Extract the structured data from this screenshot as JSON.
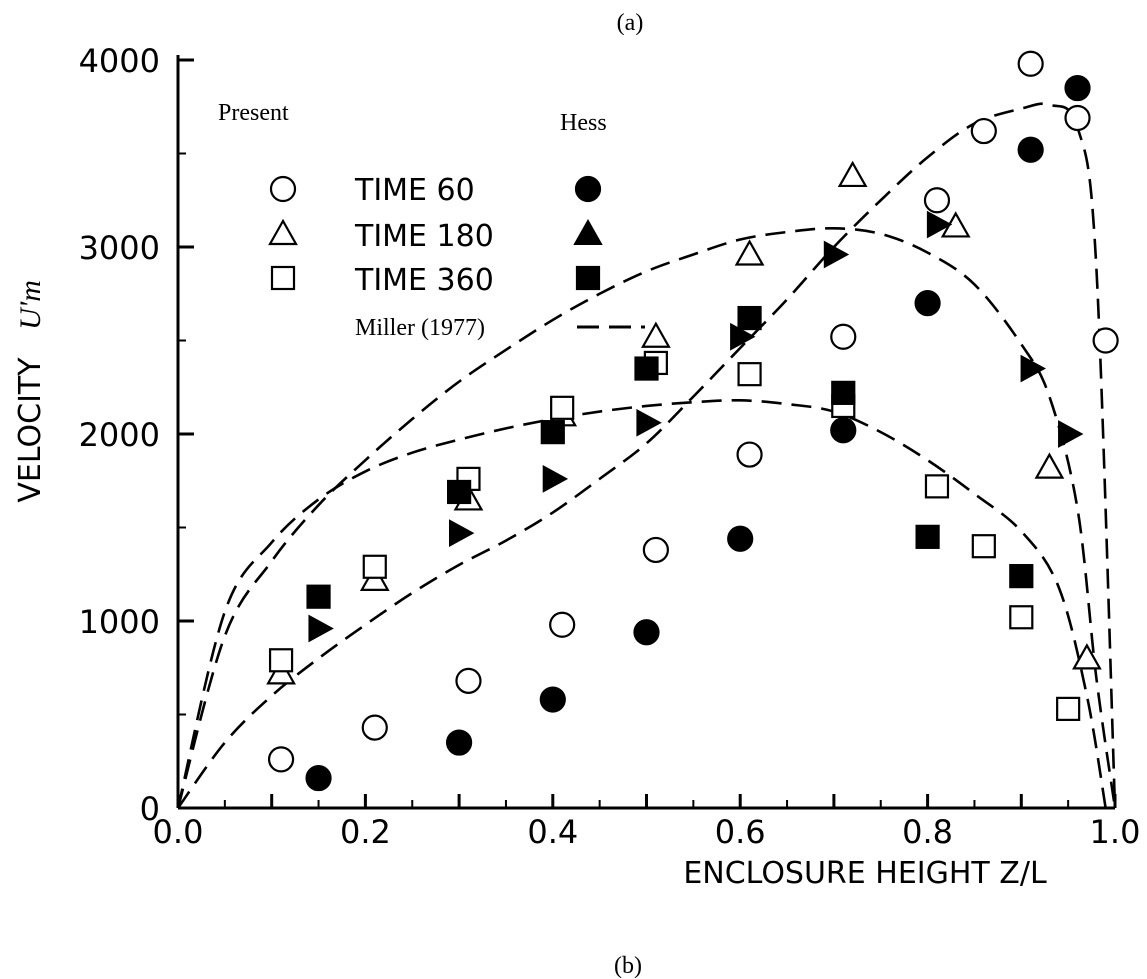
{
  "chart_data": {
    "type": "scatter",
    "top_caption": "(a)",
    "bottom_caption": "(b)",
    "xlabel": "ENCLOSURE HEIGHT  Z/L",
    "ylabel": "VELOCITY",
    "ylabel_symbol": "U'm",
    "xlim": [
      0.0,
      1.0
    ],
    "ylim": [
      0,
      4000
    ],
    "x_ticks": [
      "0.0",
      "0.2",
      "0.4",
      "0.6",
      "0.8",
      "1.0"
    ],
    "y_ticks": [
      "0",
      "1000",
      "2000",
      "3000",
      "4000"
    ],
    "grid": false,
    "legend_headers": {
      "left": "Present",
      "right": "Hess"
    },
    "legend_rows": [
      {
        "label": "TIME 60"
      },
      {
        "label": "TIME 180"
      },
      {
        "label": "TIME 360"
      }
    ],
    "legend_line_label": "Miller (1977)",
    "series": [
      {
        "name": "TIME 60",
        "source": "Present",
        "marker": "circle-open",
        "points": [
          [
            0.11,
            260
          ],
          [
            0.21,
            430
          ],
          [
            0.31,
            680
          ],
          [
            0.41,
            980
          ],
          [
            0.51,
            1380
          ],
          [
            0.61,
            1890
          ],
          [
            0.71,
            2520
          ],
          [
            0.81,
            3250
          ],
          [
            0.86,
            3620
          ],
          [
            0.91,
            3980
          ],
          [
            0.96,
            3690
          ],
          [
            0.99,
            2500
          ]
        ]
      },
      {
        "name": "TIME 60",
        "source": "Hess",
        "marker": "circle-filled",
        "points": [
          [
            0.15,
            160
          ],
          [
            0.3,
            350
          ],
          [
            0.4,
            580
          ],
          [
            0.5,
            940
          ],
          [
            0.6,
            1440
          ],
          [
            0.71,
            2020
          ],
          [
            0.8,
            2700
          ],
          [
            0.91,
            3520
          ],
          [
            0.96,
            3850
          ]
        ]
      },
      {
        "name": "TIME 180",
        "source": "Present",
        "marker": "triangle-open",
        "points": [
          [
            0.11,
            720
          ],
          [
            0.21,
            1220
          ],
          [
            0.31,
            1650
          ],
          [
            0.41,
            2100
          ],
          [
            0.51,
            2520
          ],
          [
            0.61,
            2960
          ],
          [
            0.72,
            3380
          ],
          [
            0.83,
            3110
          ],
          [
            0.93,
            1820
          ],
          [
            0.97,
            800
          ]
        ]
      },
      {
        "name": "TIME 180",
        "source": "Hess",
        "marker": "triangle-filled",
        "points": [
          [
            0.15,
            960
          ],
          [
            0.3,
            1470
          ],
          [
            0.4,
            1760
          ],
          [
            0.5,
            2060
          ],
          [
            0.6,
            2520
          ],
          [
            0.7,
            2960
          ],
          [
            0.81,
            3120
          ],
          [
            0.91,
            2350
          ],
          [
            0.95,
            2000
          ]
        ]
      },
      {
        "name": "TIME 360",
        "source": "Present",
        "marker": "square-open",
        "points": [
          [
            0.11,
            790
          ],
          [
            0.21,
            1290
          ],
          [
            0.31,
            1760
          ],
          [
            0.41,
            2140
          ],
          [
            0.51,
            2380
          ],
          [
            0.61,
            2320
          ],
          [
            0.71,
            2150
          ],
          [
            0.81,
            1720
          ],
          [
            0.86,
            1400
          ],
          [
            0.9,
            1020
          ],
          [
            0.95,
            530
          ]
        ]
      },
      {
        "name": "TIME 360",
        "source": "Hess",
        "marker": "square-filled",
        "points": [
          [
            0.15,
            1130
          ],
          [
            0.3,
            1690
          ],
          [
            0.4,
            2010
          ],
          [
            0.5,
            2350
          ],
          [
            0.61,
            2620
          ],
          [
            0.71,
            2220
          ],
          [
            0.8,
            1450
          ],
          [
            0.9,
            1240
          ]
        ]
      }
    ],
    "curves": [
      {
        "name": "Miller (1977)",
        "points": [
          [
            0.0,
            0
          ],
          [
            0.05,
            350
          ],
          [
            0.1,
            600
          ],
          [
            0.15,
            800
          ],
          [
            0.2,
            980
          ],
          [
            0.25,
            1150
          ],
          [
            0.3,
            1300
          ],
          [
            0.35,
            1430
          ],
          [
            0.4,
            1580
          ],
          [
            0.45,
            1760
          ],
          [
            0.5,
            1950
          ],
          [
            0.55,
            2200
          ],
          [
            0.6,
            2460
          ],
          [
            0.65,
            2720
          ],
          [
            0.7,
            3000
          ],
          [
            0.75,
            3250
          ],
          [
            0.8,
            3480
          ],
          [
            0.85,
            3660
          ],
          [
            0.9,
            3740
          ],
          [
            0.93,
            3760
          ],
          [
            0.96,
            3640
          ],
          [
            0.98,
            2900
          ],
          [
            1.0,
            0
          ]
        ]
      },
      {
        "name": "Miller (1977)",
        "points": [
          [
            0.0,
            0
          ],
          [
            0.05,
            920
          ],
          [
            0.1,
            1320
          ],
          [
            0.15,
            1620
          ],
          [
            0.2,
            1860
          ],
          [
            0.25,
            2080
          ],
          [
            0.3,
            2280
          ],
          [
            0.35,
            2450
          ],
          [
            0.4,
            2610
          ],
          [
            0.45,
            2750
          ],
          [
            0.5,
            2870
          ],
          [
            0.55,
            2960
          ],
          [
            0.6,
            3040
          ],
          [
            0.65,
            3080
          ],
          [
            0.7,
            3100
          ],
          [
            0.75,
            3070
          ],
          [
            0.8,
            2970
          ],
          [
            0.85,
            2800
          ],
          [
            0.9,
            2480
          ],
          [
            0.93,
            2200
          ],
          [
            0.96,
            1600
          ],
          [
            0.98,
            700
          ],
          [
            1.0,
            0
          ]
        ]
      },
      {
        "name": "Miller (1977)",
        "points": [
          [
            0.0,
            0
          ],
          [
            0.05,
            1050
          ],
          [
            0.1,
            1420
          ],
          [
            0.15,
            1650
          ],
          [
            0.2,
            1800
          ],
          [
            0.25,
            1900
          ],
          [
            0.3,
            1970
          ],
          [
            0.35,
            2030
          ],
          [
            0.4,
            2080
          ],
          [
            0.45,
            2120
          ],
          [
            0.5,
            2150
          ],
          [
            0.55,
            2170
          ],
          [
            0.6,
            2180
          ],
          [
            0.65,
            2160
          ],
          [
            0.7,
            2120
          ],
          [
            0.75,
            2010
          ],
          [
            0.8,
            1860
          ],
          [
            0.85,
            1680
          ],
          [
            0.9,
            1480
          ],
          [
            0.94,
            1180
          ],
          [
            0.97,
            600
          ],
          [
            0.99,
            0
          ]
        ]
      }
    ]
  }
}
